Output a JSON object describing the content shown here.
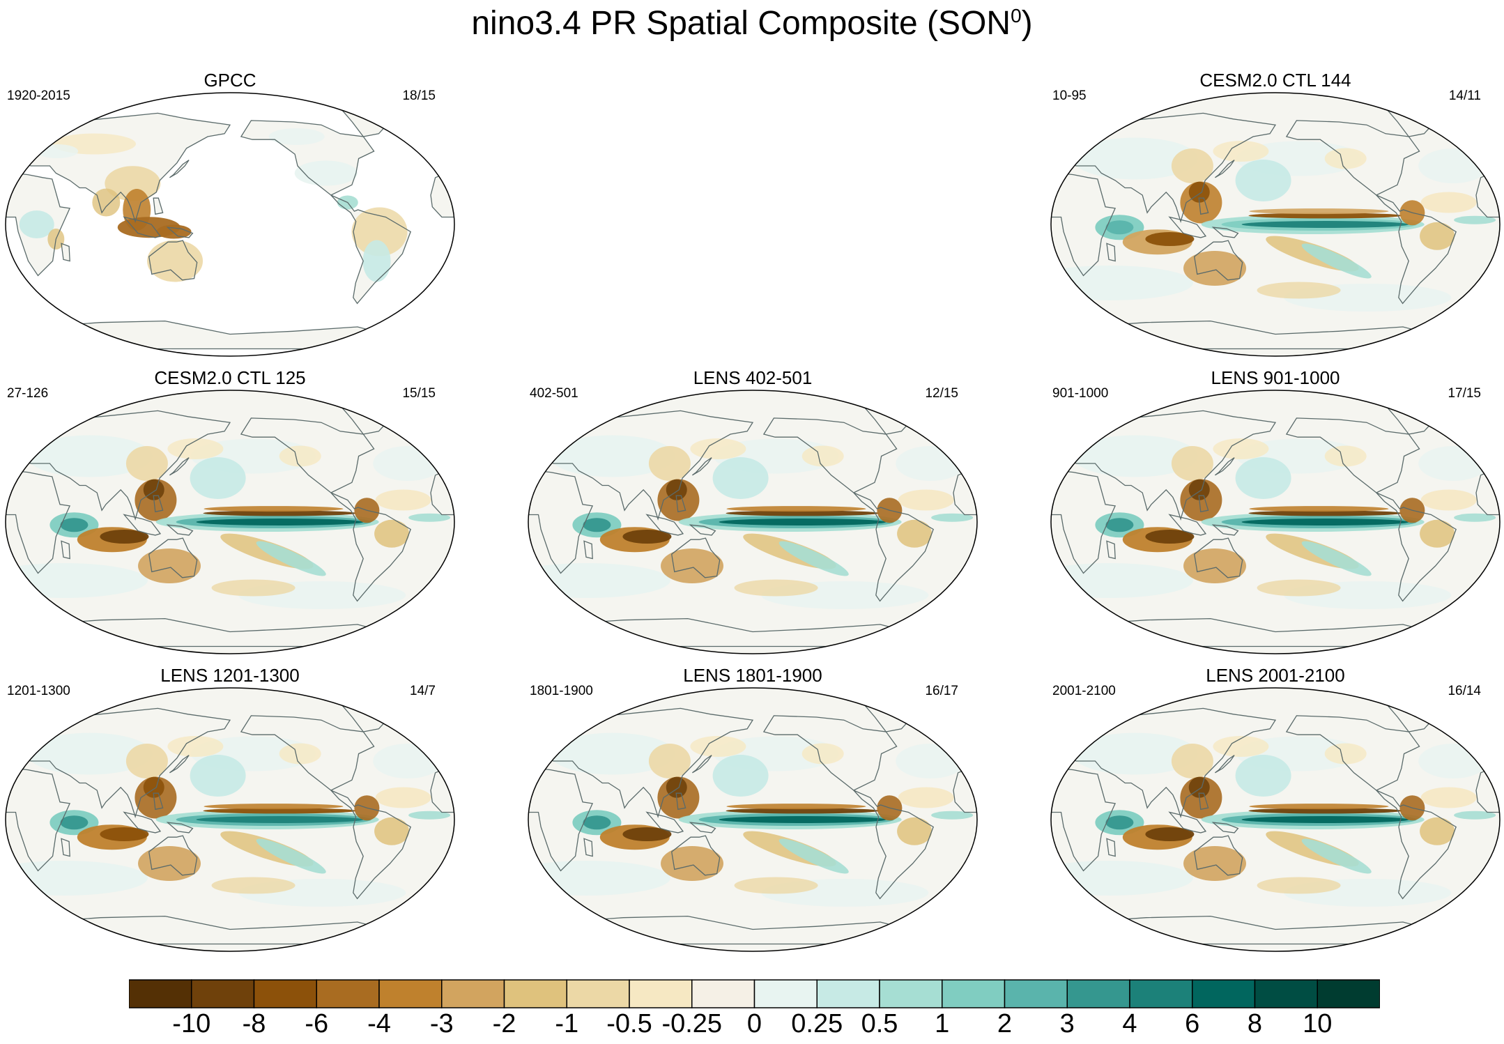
{
  "title": "nino3.4 PR Spatial Composite (SON",
  "title_sup": "0",
  "title_close": ")",
  "panels": [
    {
      "title": "GPCC",
      "left": "1920-2015",
      "right": "18/15",
      "type": "obs"
    },
    {
      "title": "CESM2.0 CTL 144",
      "left": "10-95",
      "right": "14/11",
      "type": "model",
      "strength": 0.85
    },
    {
      "title": "CESM2.0 CTL 125",
      "left": "27-126",
      "right": "15/15",
      "type": "model",
      "strength": 1.0
    },
    {
      "title": "LENS 402-501",
      "left": "402-501",
      "right": "12/15",
      "type": "model",
      "strength": 1.0
    },
    {
      "title": "LENS 901-1000",
      "left": "901-1000",
      "right": "17/15",
      "type": "model",
      "strength": 0.95
    },
    {
      "title": "LENS 1201-1300",
      "left": "1201-1300",
      "right": "14/7",
      "type": "model",
      "strength": 0.9
    },
    {
      "title": "LENS 1801-1900",
      "left": "1801-1900",
      "right": "16/17",
      "type": "model",
      "strength": 1.0
    },
    {
      "title": "LENS 2001-2100",
      "left": "2001-2100",
      "right": "16/14",
      "type": "model",
      "strength": 0.95
    }
  ],
  "colorbar": {
    "labels": [
      "-10",
      "-8",
      "-6",
      "-4",
      "-3",
      "-2",
      "-1",
      "-0.5",
      "-0.25",
      "0",
      "0.25",
      "0.5",
      "1",
      "2",
      "3",
      "4",
      "6",
      "8",
      "10"
    ],
    "colors": [
      "#543005",
      "#6f410b",
      "#8c510a",
      "#a96c21",
      "#bf812d",
      "#d2a45f",
      "#dfc27d",
      "#ecd8a6",
      "#f6e8c3",
      "#f5f0e6",
      "#e8f4f1",
      "#c7eae5",
      "#a6ded3",
      "#80cdc1",
      "#5ab4ac",
      "#35978f",
      "#1c8179",
      "#01665e",
      "#004d43",
      "#003c30"
    ],
    "neutral": "#f5f5f0",
    "coast": "#5a6a6a"
  }
}
